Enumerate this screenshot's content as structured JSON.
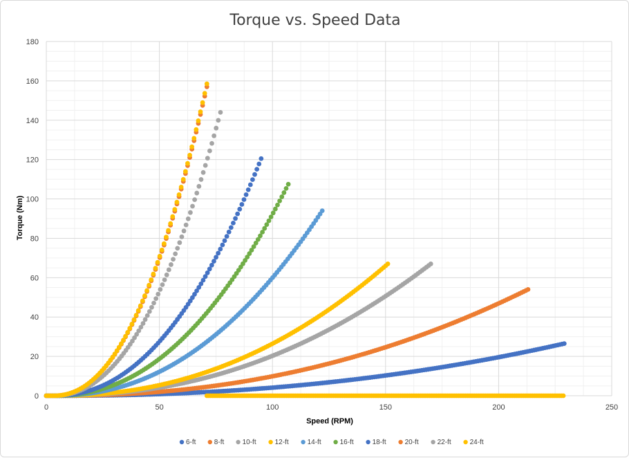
{
  "chart_data": {
    "type": "scatter",
    "title": "Torque vs. Speed Data",
    "xlabel": "Speed (RPM)",
    "ylabel": "Torque (Nm)",
    "xlim": [
      0,
      250
    ],
    "ylim": [
      0,
      180
    ],
    "x_ticks": [
      0,
      50,
      100,
      150,
      200,
      250
    ],
    "y_ticks": [
      0,
      20,
      40,
      60,
      80,
      100,
      120,
      140,
      160,
      180
    ],
    "grid": true,
    "legend_position": "bottom",
    "series": [
      {
        "name": "6-ft",
        "color": "#4472c4",
        "x_end": 229,
        "y_end": 26.5
      },
      {
        "name": "8-ft",
        "color": "#ed7d31",
        "x_end": 213,
        "y_end": 54
      },
      {
        "name": "10-ft",
        "color": "#a5a5a5",
        "x_end": 170,
        "y_end": 67
      },
      {
        "name": "12-ft",
        "color": "#ffc000",
        "x_end": 151,
        "y_end": 67
      },
      {
        "name": "14-ft",
        "color": "#5b9bd5",
        "x_end": 122,
        "y_end": 94
      },
      {
        "name": "16-ft",
        "color": "#70ad47",
        "x_end": 107,
        "y_end": 107.5
      },
      {
        "name": "18-ft",
        "color": "#4472c4",
        "x_end": 95,
        "y_end": 120.5
      },
      {
        "name": "20-ft",
        "color": "#ed7d31",
        "x_end": 71,
        "y_end": 157
      },
      {
        "name": "22-ft",
        "color": "#a5a5a5",
        "x_end": 77,
        "y_end": 144
      },
      {
        "name": "24-ft",
        "color": "#ffc000",
        "x_end": 71,
        "y_end": 158.5,
        "zero_band": [
          71,
          229
        ]
      }
    ]
  }
}
